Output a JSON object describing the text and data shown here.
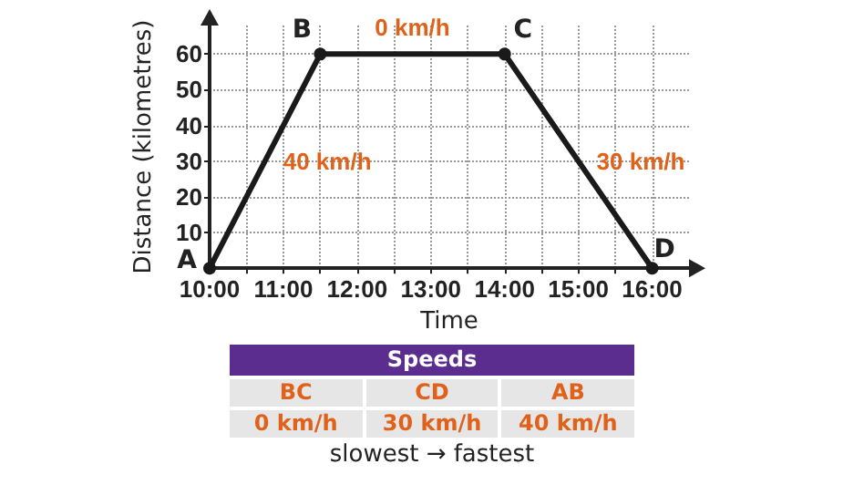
{
  "chart_data": {
    "type": "line",
    "xlabel": "Time",
    "ylabel": "Distance (kilometres)",
    "x": [
      10,
      11.5,
      14,
      16
    ],
    "series": [
      {
        "color": "#1a1a1a",
        "values": [
          0,
          60,
          60,
          0
        ]
      }
    ],
    "xlim": [
      10,
      16.5
    ],
    "ylim": [
      0,
      68
    ],
    "xticks": [
      {
        "value": 10,
        "label": "10:00"
      },
      {
        "value": 10.5,
        "label": null
      },
      {
        "value": 11,
        "label": "11:00"
      },
      {
        "value": 11.5,
        "label": null
      },
      {
        "value": 12,
        "label": "12:00"
      },
      {
        "value": 12.5,
        "label": null
      },
      {
        "value": 13,
        "label": "13:00"
      },
      {
        "value": 13.5,
        "label": null
      },
      {
        "value": 14,
        "label": "14:00"
      },
      {
        "value": 14.5,
        "label": null
      },
      {
        "value": 15,
        "label": "15:00"
      },
      {
        "value": 15.5,
        "label": null
      },
      {
        "value": 16,
        "label": "16:00"
      }
    ],
    "yticks": [
      {
        "value": 0,
        "label": null
      },
      10,
      20,
      30,
      40,
      50,
      60
    ],
    "grid": true,
    "marker": "circle",
    "line_style": "solid",
    "annotations": [
      {
        "text": "A",
        "x": 10,
        "y": 0
      },
      {
        "text": "B",
        "x": 11.5,
        "y": 60
      },
      {
        "text": "C",
        "x": 14,
        "y": 60
      },
      {
        "text": "D",
        "x": 16,
        "y": 0
      },
      "40 km/h",
      "0 km/h",
      "30 km/h",
      "Speeds",
      "BC",
      "CD",
      "AB",
      "0 km/h",
      "30 km/h",
      "40 km/h",
      "slowest → fastest"
    ]
  }
}
